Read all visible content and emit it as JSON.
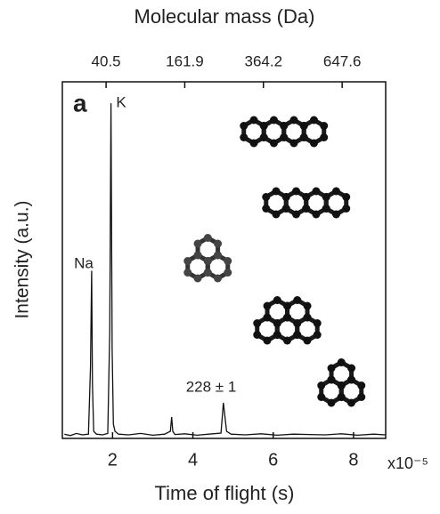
{
  "chart_data": {
    "type": "line",
    "title": "Molecular mass (Da)",
    "x_label": "Time of flight (s)",
    "y_label": "Intensity (a.u.)",
    "x_multiplier": "x10⁻⁵",
    "panel_label": "a",
    "annotations": [
      "Na",
      "K",
      "228 ± 1"
    ],
    "xlim": [
      0.75,
      8.8
    ],
    "xticks": [
      2,
      4,
      6,
      8
    ],
    "x2lim": [
      8,
      839
    ],
    "x2scale": "sqrt",
    "x2ticks": [
      40.5,
      161.9,
      364.2,
      647.6
    ],
    "ylim": [
      0,
      1
    ],
    "series": [
      {
        "color": "#111111",
        "x": [
          0.8,
          0.95,
          1.1,
          1.25,
          1.4,
          1.45,
          1.48,
          1.5,
          1.53,
          1.6,
          1.75,
          1.88,
          1.93,
          1.96,
          1.99,
          2.02,
          2.06,
          2.15,
          2.4,
          2.7,
          3.0,
          3.3,
          3.44,
          3.47,
          3.5,
          3.55,
          3.8,
          4.1,
          4.4,
          4.7,
          4.76,
          4.8,
          4.84,
          4.95,
          5.3,
          5.7,
          6.1,
          6.5,
          6.9,
          7.3,
          7.7,
          8.1,
          8.5,
          8.8
        ],
        "values": [
          0.012,
          0.008,
          0.014,
          0.01,
          0.012,
          0.2,
          0.47,
          0.15,
          0.02,
          0.012,
          0.01,
          0.014,
          0.3,
          0.94,
          0.25,
          0.04,
          0.02,
          0.012,
          0.01,
          0.014,
          0.009,
          0.012,
          0.02,
          0.06,
          0.02,
          0.011,
          0.013,
          0.009,
          0.012,
          0.015,
          0.1,
          0.06,
          0.02,
          0.012,
          0.01,
          0.013,
          0.009,
          0.012,
          0.011,
          0.01,
          0.013,
          0.009,
          0.012,
          0.01
        ]
      }
    ]
  }
}
